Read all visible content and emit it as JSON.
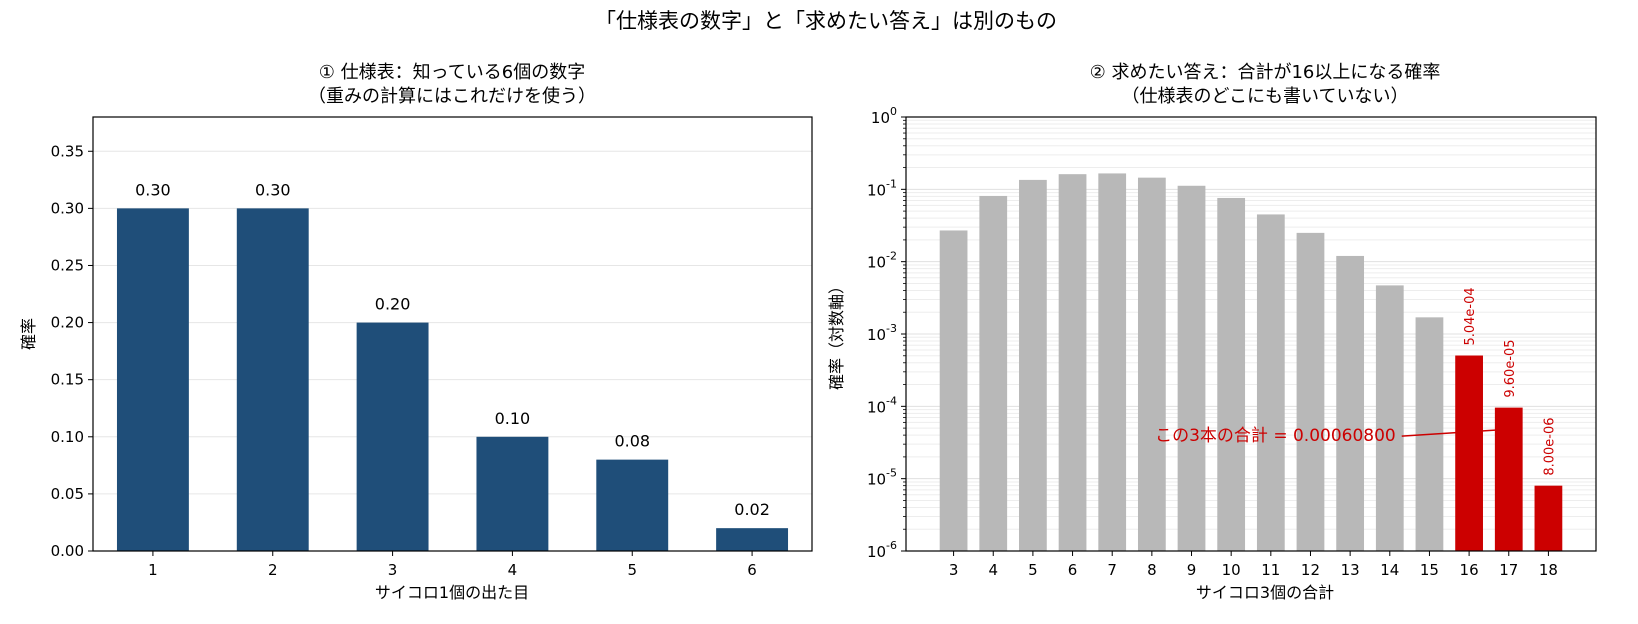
{
  "figure": {
    "suptitle": "「仕様表の数字」と「求めたい答え」は別のもの"
  },
  "chart_data": [
    {
      "type": "bar",
      "title_line1": "① 仕様表：知っている6個の数字",
      "title_line2": "（重みの計算にはこれだけを使う）",
      "xlabel": "サイコロ1個の出た目",
      "ylabel": "確率",
      "categories": [
        "1",
        "2",
        "3",
        "4",
        "5",
        "6"
      ],
      "values": [
        0.3,
        0.3,
        0.2,
        0.1,
        0.08,
        0.02
      ],
      "data_labels": [
        "0.30",
        "0.30",
        "0.20",
        "0.10",
        "0.08",
        "0.02"
      ],
      "ylim": [
        0,
        0.38
      ],
      "yticks": [
        "0.00",
        "0.05",
        "0.10",
        "0.15",
        "0.20",
        "0.25",
        "0.30",
        "0.35"
      ],
      "grid": "horizontal",
      "bar_color": "#1f4e79"
    },
    {
      "type": "bar",
      "title_line1": "② 求めたい答え：合計が16以上になる確率",
      "title_line2": "（仕様表のどこにも書いていない）",
      "xlabel": "サイコロ3個の合計",
      "ylabel": "確率（対数軸）",
      "yscale": "log",
      "ylim": [
        1e-06,
        1
      ],
      "ytick_exponents": [
        "-6",
        "-5",
        "-4",
        "-3",
        "-2",
        "-1",
        "0"
      ],
      "ytick_base": "10",
      "categories": [
        "3",
        "4",
        "5",
        "6",
        "7",
        "8",
        "9",
        "10",
        "11",
        "12",
        "13",
        "14",
        "15",
        "16",
        "17",
        "18"
      ],
      "values": [
        0.027,
        0.081,
        0.135,
        0.162,
        0.166,
        0.145,
        0.112,
        0.076,
        0.045,
        0.025,
        0.012,
        0.0047,
        0.0017,
        0.000504,
        9.6e-05,
        8e-06
      ],
      "highlight_labels": [
        "",
        "",
        "",
        "",
        "",
        "",
        "",
        "",
        "",
        "",
        "",
        "",
        "",
        "5.04e-04",
        "9.60e-05",
        "8.00e-06"
      ],
      "highlight_flags": [
        false,
        false,
        false,
        false,
        false,
        false,
        false,
        false,
        false,
        false,
        false,
        false,
        false,
        true,
        true,
        true
      ],
      "annotation": "この3本の合計 = 0.00060800",
      "annotation_target": "17",
      "grid": "horizontal-minor",
      "bar_color": "#b8b8b8",
      "highlight_color": "#cc0000"
    }
  ]
}
